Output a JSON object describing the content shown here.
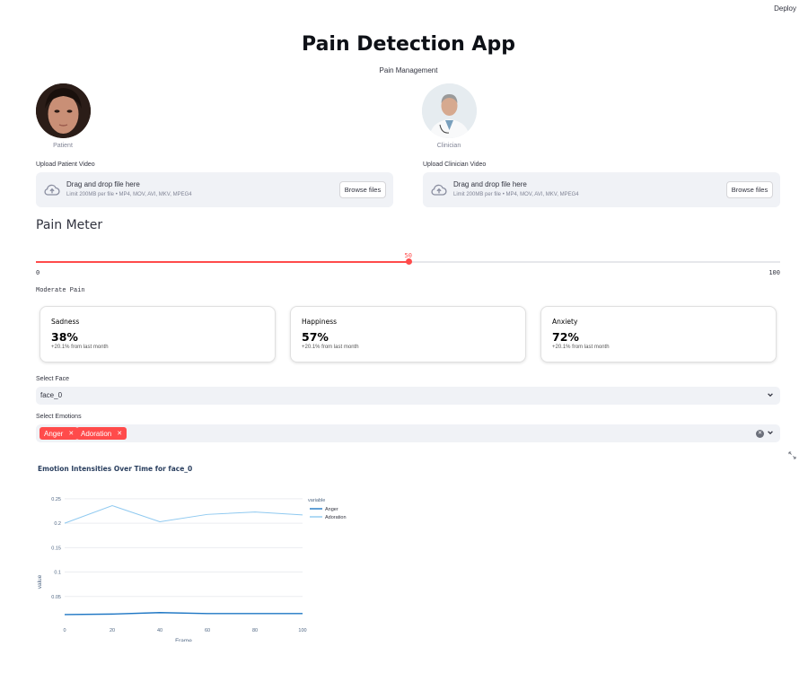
{
  "toolbar": {
    "deploy_label": "Deploy"
  },
  "header": {
    "title": "Pain Detection App",
    "subtitle": "Pain Management"
  },
  "patient": {
    "caption": "Patient"
  },
  "clinician": {
    "caption": "Clinician"
  },
  "uploads": {
    "patient": {
      "label": "Upload Patient Video",
      "drop_text": "Drag and drop file here",
      "limit_text": "Limit 200MB per file • MP4, MOV, AVI, MKV, MPEG4",
      "browse_label": "Browse files"
    },
    "clinician": {
      "label": "Upload Clinician Video",
      "drop_text": "Drag and drop file here",
      "limit_text": "Limit 200MB per file • MP4, MOV, AVI, MKV, MPEG4",
      "browse_label": "Browse files"
    }
  },
  "pain_meter": {
    "heading": "Pain Meter",
    "value": 50,
    "min": 0,
    "max": 100,
    "value_text": "50",
    "min_text": "0",
    "max_text": "100",
    "status_text": "Moderate Pain"
  },
  "metrics": [
    {
      "label": "Sadness",
      "value": "38%",
      "delta": "+20.1% from last month"
    },
    {
      "label": "Happiness",
      "value": "57%",
      "delta": "+20.1% from last month"
    },
    {
      "label": "Anxiety",
      "value": "72%",
      "delta": "+20.1% from last month"
    }
  ],
  "select_face": {
    "label": "Select Face",
    "value": "face_0"
  },
  "select_emotions": {
    "label": "Select Emotions",
    "tags": [
      "Anger",
      "Adoration"
    ]
  },
  "colors": {
    "accent": "#ff4b4b",
    "anger": "#1f77c4",
    "adoration": "#8fc9f0"
  },
  "chart_data": {
    "type": "line",
    "title": "Emotion Intensities Over Time for face_0",
    "xlabel": "Frame",
    "ylabel": "value",
    "x": [
      0,
      20,
      40,
      60,
      80,
      100
    ],
    "x_ticks": [
      "0",
      "20",
      "40",
      "60",
      "80",
      "100"
    ],
    "y_ticks": [
      "0.05",
      "0.1",
      "0.15",
      "0.2",
      "0.25"
    ],
    "y_tick_values": [
      0.05,
      0.1,
      0.15,
      0.2,
      0.25
    ],
    "xlim": [
      0,
      100
    ],
    "ylim": [
      0,
      0.27
    ],
    "legend_title": "variable",
    "legend_position": "top-right",
    "grid": true,
    "series": [
      {
        "name": "Anger",
        "values": [
          0.013,
          0.014,
          0.017,
          0.015,
          0.015,
          0.015
        ]
      },
      {
        "name": "Adoration",
        "values": [
          0.2,
          0.236,
          0.203,
          0.218,
          0.223,
          0.217
        ]
      }
    ]
  }
}
